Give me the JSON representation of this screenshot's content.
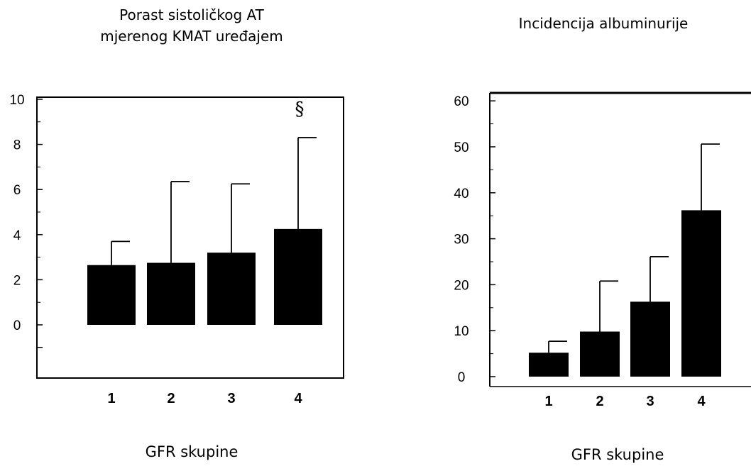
{
  "chart_data": [
    {
      "type": "bar",
      "title": "Porast sistoličkog AT\nmjerenog KMAT uređajem",
      "xlabel": "GFR skupine",
      "ylabel": "",
      "categories": [
        "1",
        "2",
        "3",
        "4"
      ],
      "values": [
        2.65,
        2.75,
        3.2,
        4.25
      ],
      "error_upper": [
        3.7,
        6.35,
        6.25,
        8.3
      ],
      "annotations": [
        {
          "category": "4",
          "text": "§"
        }
      ],
      "ylim": [
        -2,
        10
      ],
      "yticks": [
        0,
        2,
        4,
        6,
        8,
        10
      ],
      "grid": false,
      "color": "#000000"
    },
    {
      "type": "bar",
      "title": "Incidencija albuminurije",
      "xlabel": "GFR skupine",
      "ylabel": "",
      "categories": [
        "1",
        "2",
        "3",
        "4"
      ],
      "values": [
        5.2,
        9.8,
        16.3,
        36.2
      ],
      "error_upper": [
        7.7,
        20.8,
        26.1,
        50.6
      ],
      "ylim": [
        -2,
        62
      ],
      "yticks": [
        0,
        10,
        20,
        30,
        40,
        50,
        60
      ],
      "grid": false,
      "color": "#000000"
    }
  ]
}
